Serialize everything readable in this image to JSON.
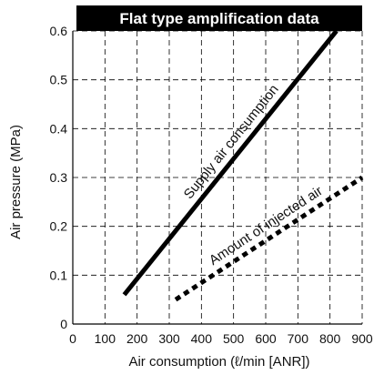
{
  "chart_data": {
    "type": "line",
    "title": "Flat type amplification data",
    "xlabel": "Air consumption (ℓ/min [ANR])",
    "ylabel": "Air pressure (MPa)",
    "xlim": [
      0,
      900
    ],
    "ylim": [
      0,
      0.6
    ],
    "x_ticks": [
      "0",
      "100",
      "200",
      "300",
      "400",
      "500",
      "600",
      "700",
      "800",
      "900"
    ],
    "y_ticks": [
      "0",
      "0.1",
      "0.2",
      "0.3",
      "0.4",
      "0.5",
      "0.6"
    ],
    "grid": true,
    "grid_style": "dashed",
    "series": [
      {
        "name": "Supply air consumption",
        "style": "solid",
        "color": "#000000",
        "x": [
          160,
          820
        ],
        "y": [
          0.06,
          0.6
        ]
      },
      {
        "name": "Amount of injected air",
        "style": "dotted",
        "color": "#000000",
        "x": [
          320,
          900
        ],
        "y": [
          0.05,
          0.3
        ]
      }
    ]
  }
}
